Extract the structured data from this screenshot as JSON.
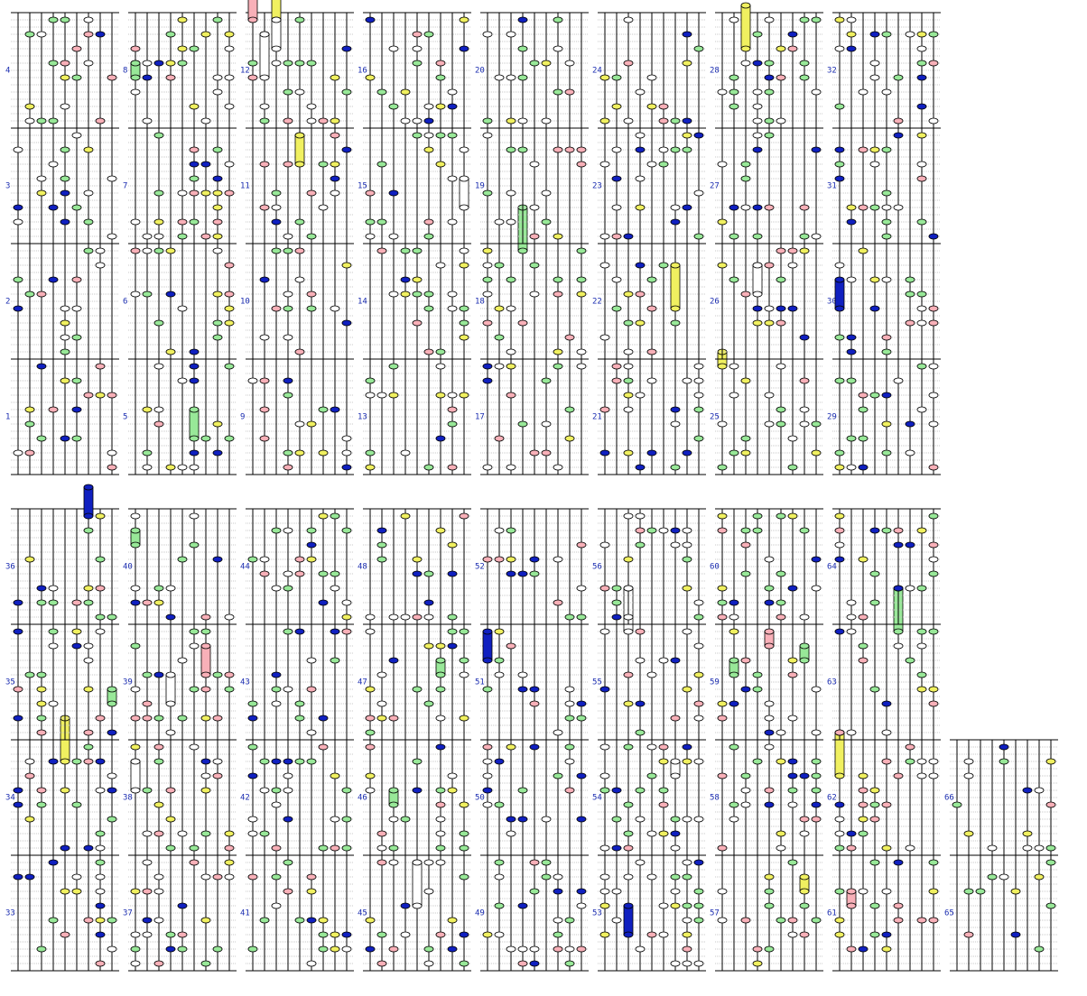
{
  "measure_numbers": [
    "1",
    "2",
    "3",
    "4",
    "5",
    "6",
    "7",
    "8",
    "9",
    "10",
    "11",
    "12",
    "13",
    "14",
    "15",
    "16",
    "17",
    "18",
    "19",
    "20",
    "21",
    "22",
    "23",
    "24",
    "25",
    "26",
    "27",
    "28",
    "29",
    "30",
    "31",
    "32",
    "33",
    "34",
    "35",
    "36",
    "37",
    "38",
    "39",
    "40",
    "41",
    "42",
    "43",
    "44",
    "45",
    "46",
    "47",
    "48",
    "49",
    "50",
    "51",
    "52",
    "53",
    "54",
    "55",
    "56",
    "57",
    "58",
    "59",
    "60",
    "61",
    "62",
    "63",
    "64",
    "65",
    "66"
  ]
}
